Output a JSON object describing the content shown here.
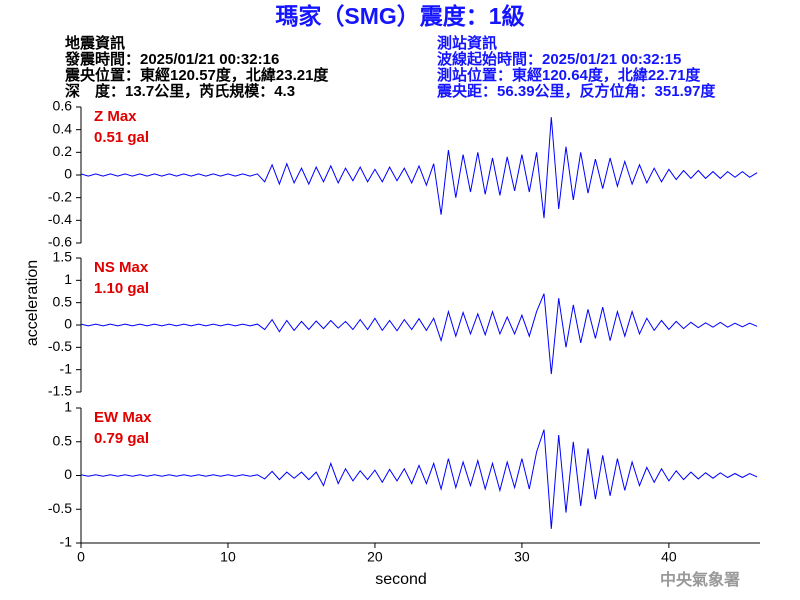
{
  "header": {
    "title": "瑪家（SMG）震度：1級",
    "left": [
      "地震資訊",
      "發震時間：2025/01/21 00:32:16",
      "震央位置：東經120.57度，北緯23.21度",
      "深　度：13.7公里，芮氏規模：4.3"
    ],
    "right": [
      "測站資訊",
      "波線起始時間：2025/01/21 00:32:15",
      "測站位置：東經120.64度，北緯22.71度",
      "震央距：56.39公里，反方位角：351.97度"
    ],
    "agency": "中央氣象署"
  },
  "chart_data": [
    {
      "type": "line",
      "color": "#0000ff",
      "annotations": [
        "Z Max",
        "0.51 gal"
      ],
      "xlim": [
        0,
        46.2
      ],
      "ylim": [
        -0.6,
        0.6
      ],
      "yticks": [
        0.6,
        0.4,
        0.2,
        0,
        -0.2,
        -0.4,
        -0.6
      ],
      "x": [
        0,
        0.5,
        1,
        1.5,
        2,
        2.5,
        3,
        3.5,
        4,
        4.5,
        5,
        5.5,
        6,
        6.5,
        7,
        7.5,
        8,
        8.5,
        9,
        9.5,
        10,
        10.5,
        11,
        11.5,
        12,
        12.5,
        13,
        13.5,
        14,
        14.5,
        15,
        15.5,
        16,
        16.5,
        17,
        17.5,
        18,
        18.5,
        19,
        19.5,
        20,
        20.5,
        21,
        21.5,
        22,
        22.5,
        23,
        23.5,
        24,
        24.5,
        25,
        25.5,
        26,
        26.5,
        27,
        27.5,
        28,
        28.5,
        29,
        29.5,
        30,
        30.5,
        31,
        31.5,
        32,
        32.5,
        33,
        33.5,
        34,
        34.5,
        35,
        35.5,
        36,
        36.5,
        37,
        37.5,
        38,
        38.5,
        39,
        39.5,
        40,
        40.5,
        41,
        41.5,
        42,
        42.5,
        43,
        43.5,
        44,
        44.5,
        45,
        45.5,
        46
      ],
      "values": [
        0.01,
        -0.01,
        0.01,
        -0.01,
        0.01,
        -0.01,
        0.01,
        -0.01,
        0.01,
        -0.01,
        0.01,
        -0.01,
        0.01,
        -0.01,
        0.01,
        -0.01,
        0.01,
        -0.01,
        0.01,
        -0.01,
        0.01,
        -0.01,
        0.01,
        -0.01,
        0.01,
        -0.06,
        0.09,
        -0.08,
        0.1,
        -0.07,
        0.06,
        -0.08,
        0.07,
        -0.06,
        0.08,
        -0.07,
        0.06,
        -0.05,
        0.07,
        -0.06,
        0.05,
        -0.06,
        0.07,
        -0.05,
        0.06,
        -0.07,
        0.08,
        -0.09,
        0.1,
        -0.35,
        0.22,
        -0.2,
        0.18,
        -0.15,
        0.2,
        -0.17,
        0.15,
        -0.18,
        0.16,
        -0.14,
        0.18,
        -0.15,
        0.2,
        -0.38,
        0.51,
        -0.3,
        0.25,
        -0.22,
        0.2,
        -0.16,
        0.14,
        -0.12,
        0.15,
        -0.1,
        0.12,
        -0.08,
        0.09,
        -0.07,
        0.06,
        -0.06,
        0.05,
        -0.04,
        0.04,
        -0.03,
        0.04,
        -0.03,
        0.03,
        -0.03,
        0.03,
        -0.02,
        0.03,
        -0.02,
        0.02
      ]
    },
    {
      "type": "line",
      "color": "#0000ff",
      "annotations": [
        "NS Max",
        "1.10 gal"
      ],
      "ylabel": "acceleration",
      "xlim": [
        0,
        46.2
      ],
      "ylim": [
        -1.5,
        1.5
      ],
      "yticks": [
        1.5,
        1,
        0.5,
        0,
        -0.5,
        -1,
        -1.5
      ],
      "x": [
        0,
        0.5,
        1,
        1.5,
        2,
        2.5,
        3,
        3.5,
        4,
        4.5,
        5,
        5.5,
        6,
        6.5,
        7,
        7.5,
        8,
        8.5,
        9,
        9.5,
        10,
        10.5,
        11,
        11.5,
        12,
        12.5,
        13,
        13.5,
        14,
        14.5,
        15,
        15.5,
        16,
        16.5,
        17,
        17.5,
        18,
        18.5,
        19,
        19.5,
        20,
        20.5,
        21,
        21.5,
        22,
        22.5,
        23,
        23.5,
        24,
        24.5,
        25,
        25.5,
        26,
        26.5,
        27,
        27.5,
        28,
        28.5,
        29,
        29.5,
        30,
        30.5,
        31,
        31.5,
        32,
        32.5,
        33,
        33.5,
        34,
        34.5,
        35,
        35.5,
        36,
        36.5,
        37,
        37.5,
        38,
        38.5,
        39,
        39.5,
        40,
        40.5,
        41,
        41.5,
        42,
        42.5,
        43,
        43.5,
        44,
        44.5,
        45,
        45.5,
        46
      ],
      "values": [
        0.02,
        -0.02,
        0.02,
        -0.02,
        0.02,
        -0.02,
        0.02,
        -0.02,
        0.02,
        -0.02,
        0.02,
        -0.02,
        0.02,
        -0.02,
        0.02,
        -0.02,
        0.02,
        -0.02,
        0.02,
        -0.02,
        0.02,
        -0.02,
        0.02,
        -0.02,
        0.02,
        -0.1,
        0.12,
        -0.15,
        0.1,
        -0.12,
        0.08,
        -0.1,
        0.09,
        -0.08,
        0.1,
        -0.07,
        0.08,
        -0.1,
        0.12,
        -0.1,
        0.15,
        -0.12,
        0.1,
        -0.13,
        0.12,
        -0.1,
        0.14,
        -0.12,
        0.15,
        -0.35,
        0.3,
        -0.25,
        0.28,
        -0.2,
        0.25,
        -0.22,
        0.3,
        -0.2,
        0.18,
        -0.2,
        0.22,
        -0.25,
        0.3,
        0.7,
        -1.1,
        0.6,
        -0.5,
        0.45,
        -0.4,
        0.35,
        -0.3,
        0.4,
        -0.35,
        0.3,
        -0.25,
        0.3,
        -0.2,
        0.15,
        -0.12,
        0.1,
        -0.1,
        0.08,
        -0.08,
        0.06,
        -0.06,
        0.05,
        -0.05,
        0.06,
        -0.05,
        0.04,
        -0.04,
        0.04,
        -0.03
      ]
    },
    {
      "type": "line",
      "color": "#0000ff",
      "annotations": [
        "EW Max",
        "0.79 gal"
      ],
      "xlabel": "second",
      "xlim": [
        0,
        46.2
      ],
      "xticks": [
        0,
        10,
        20,
        30,
        40
      ],
      "ylim": [
        -1,
        1
      ],
      "yticks": [
        1,
        0.5,
        0,
        -0.5,
        -1
      ],
      "x": [
        0,
        0.5,
        1,
        1.5,
        2,
        2.5,
        3,
        3.5,
        4,
        4.5,
        5,
        5.5,
        6,
        6.5,
        7,
        7.5,
        8,
        8.5,
        9,
        9.5,
        10,
        10.5,
        11,
        11.5,
        12,
        12.5,
        13,
        13.5,
        14,
        14.5,
        15,
        15.5,
        16,
        16.5,
        17,
        17.5,
        18,
        18.5,
        19,
        19.5,
        20,
        20.5,
        21,
        21.5,
        22,
        22.5,
        23,
        23.5,
        24,
        24.5,
        25,
        25.5,
        26,
        26.5,
        27,
        27.5,
        28,
        28.5,
        29,
        29.5,
        30,
        30.5,
        31,
        31.5,
        32,
        32.5,
        33,
        33.5,
        34,
        34.5,
        35,
        35.5,
        36,
        36.5,
        37,
        37.5,
        38,
        38.5,
        39,
        39.5,
        40,
        40.5,
        41,
        41.5,
        42,
        42.5,
        43,
        43.5,
        44,
        44.5,
        45,
        45.5,
        46
      ],
      "values": [
        0.01,
        -0.01,
        0.01,
        -0.01,
        0.01,
        -0.01,
        0.01,
        -0.01,
        0.01,
        -0.01,
        0.01,
        -0.01,
        0.01,
        -0.01,
        0.01,
        -0.01,
        0.01,
        -0.01,
        0.01,
        -0.01,
        0.01,
        -0.01,
        0.01,
        -0.01,
        0.01,
        -0.05,
        0.06,
        -0.06,
        0.05,
        -0.04,
        0.05,
        -0.06,
        0.05,
        -0.15,
        0.18,
        -0.12,
        0.1,
        -0.08,
        0.07,
        -0.06,
        0.08,
        -0.1,
        0.09,
        -0.08,
        0.1,
        -0.12,
        0.15,
        -0.12,
        0.18,
        -0.2,
        0.25,
        -0.18,
        0.2,
        -0.15,
        0.22,
        -0.2,
        0.18,
        -0.22,
        0.2,
        -0.18,
        0.25,
        -0.2,
        0.35,
        0.68,
        -0.79,
        0.6,
        -0.55,
        0.5,
        -0.45,
        0.4,
        -0.35,
        0.3,
        -0.3,
        0.25,
        -0.22,
        0.2,
        -0.15,
        0.12,
        -0.1,
        0.1,
        -0.08,
        0.07,
        -0.06,
        0.05,
        -0.05,
        0.04,
        -0.04,
        0.04,
        -0.03,
        0.03,
        -0.03,
        0.03,
        -0.02
      ]
    }
  ]
}
